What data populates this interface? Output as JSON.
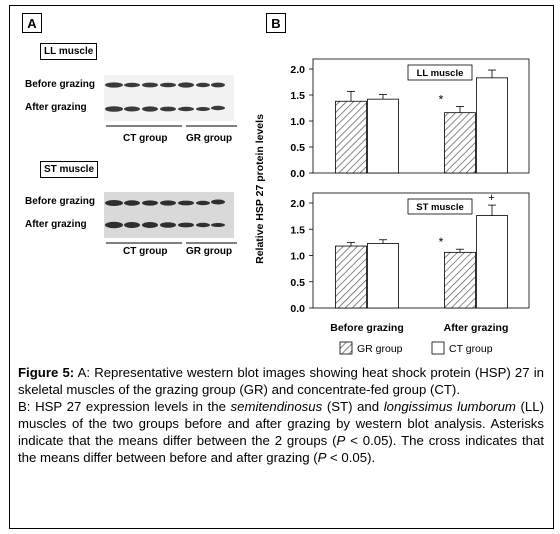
{
  "panel_a": {
    "letter": "A",
    "ll_box": "LL muscle",
    "st_box": "ST muscle",
    "before": "Before grazing",
    "after": "After grazing",
    "ct_group": "CT group",
    "gr_group": "GR group"
  },
  "panel_b": {
    "letter": "B",
    "ylabel": "Relative HSP 27 protein levels",
    "x_before": "Before grazing",
    "x_after": "After grazing",
    "legend_gr": "GR group",
    "legend_ct": "CT group",
    "star": "*",
    "cross": "+"
  },
  "chart_data": [
    {
      "type": "bar",
      "title": "LL muscle",
      "categories": [
        "Before grazing",
        "After grazing"
      ],
      "series": [
        {
          "name": "GR group",
          "values": [
            1.38,
            1.16
          ],
          "errors": [
            0.19,
            0.12
          ]
        },
        {
          "name": "CT group",
          "values": [
            1.42,
            1.83
          ],
          "errors": [
            0.09,
            0.15
          ]
        }
      ],
      "ylim": [
        0,
        2.0
      ],
      "yticks": [
        "0.0",
        "0.5",
        "1.0",
        "1.5",
        "2.0"
      ],
      "annotations": [
        "*"
      ]
    },
    {
      "type": "bar",
      "title": "ST muscle",
      "categories": [
        "Before grazing",
        "After grazing"
      ],
      "series": [
        {
          "name": "GR group",
          "values": [
            1.18,
            1.06
          ],
          "errors": [
            0.07,
            0.06
          ]
        },
        {
          "name": "CT group",
          "values": [
            1.23,
            1.76
          ],
          "errors": [
            0.07,
            0.2
          ]
        }
      ],
      "ylim": [
        0,
        2.0
      ],
      "yticks": [
        "0.0",
        "0.5",
        "1.0",
        "1.5",
        "2.0"
      ],
      "annotations": [
        "*",
        "+"
      ]
    }
  ],
  "caption": {
    "fig_label": "Figure 5:",
    "a_text": " A: Representative western blot images showing heat shock protein (HSP) 27 in skeletal muscles of the grazing group (GR) and concentrate-fed group (CT).",
    "b_1": "B: HSP 27 expression levels in the ",
    "b_semi": "semitendinosus",
    "b_2": " (ST) and ",
    "b_long": "longissimus lumborum",
    "b_3": " (LL) muscles of the two groups before and after grazing by western blot analysis. Asterisks indicate that the means differ between the 2 groups (",
    "b_p1": "P",
    "b_4": " < 0.05). The cross indicates that the means differ between before and after grazing (",
    "b_p2": "P",
    "b_5": " < 0.05)."
  }
}
